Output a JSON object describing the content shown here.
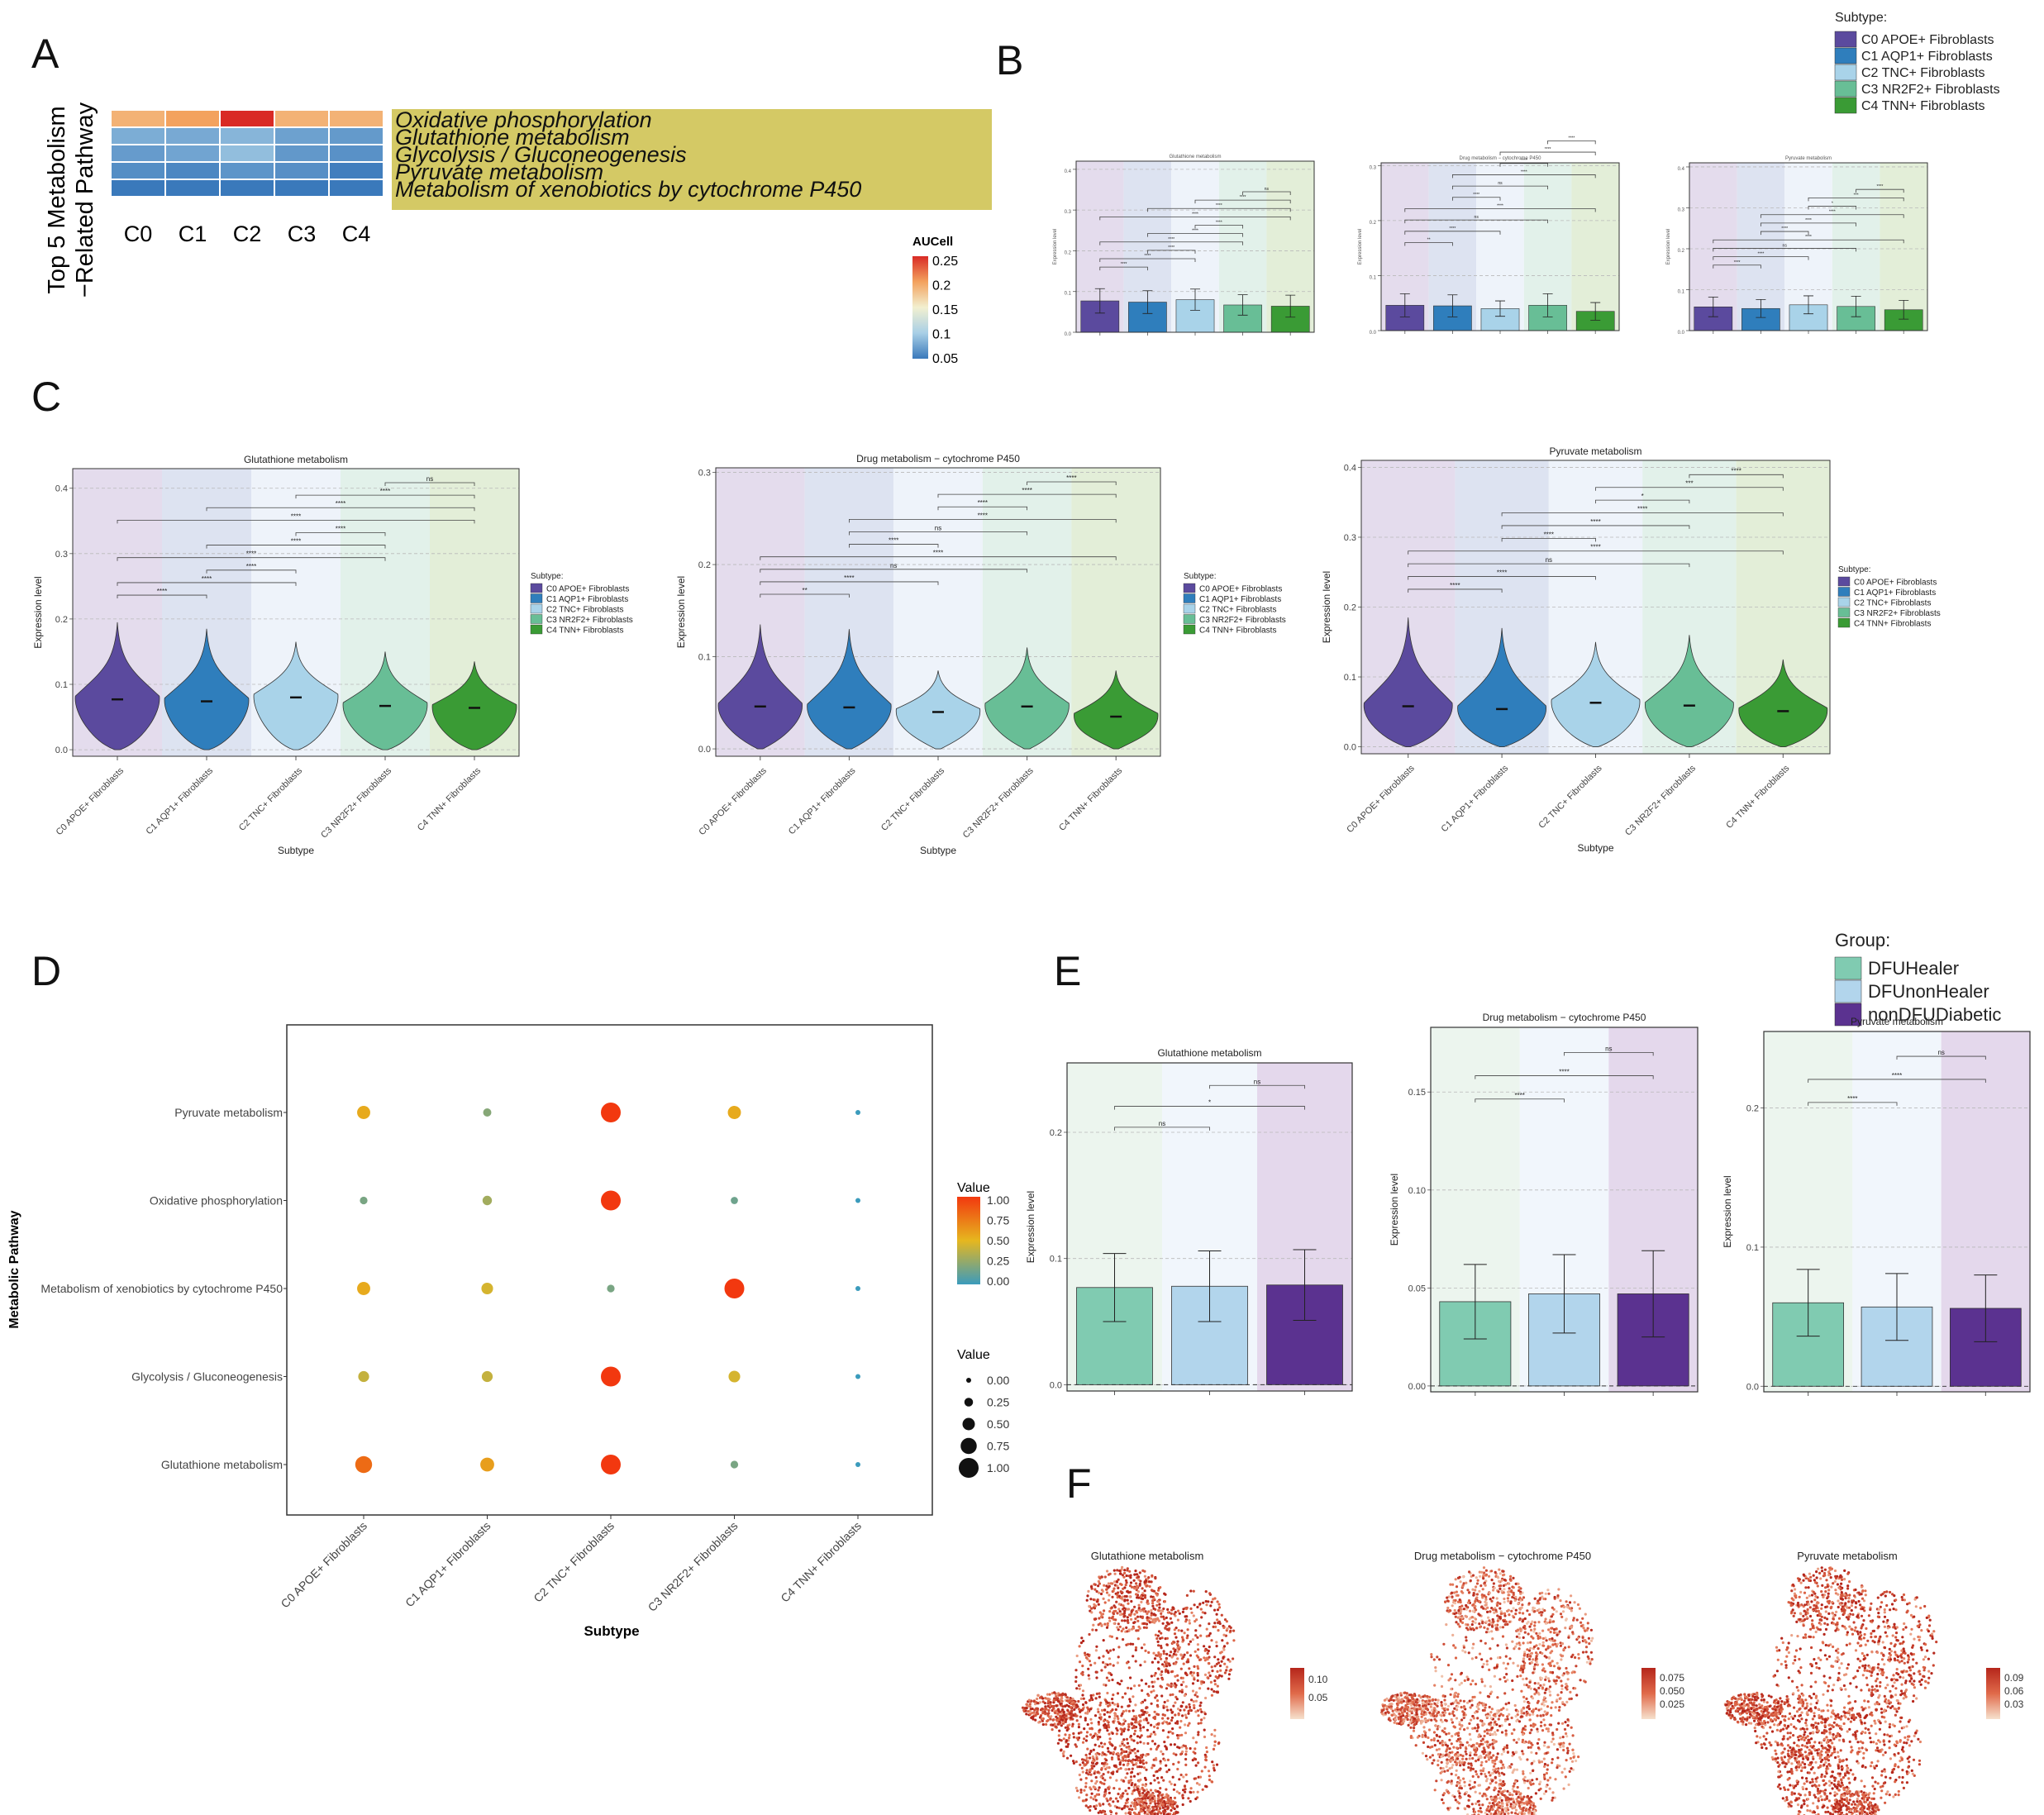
{
  "panels": {
    "A": "A",
    "B": "B",
    "C": "C",
    "D": "D",
    "E": "E",
    "F": "F"
  },
  "colors": {
    "subtype": [
      "#5b4a9e",
      "#2f7ebc",
      "#a9d3e9",
      "#68be96",
      "#3a9b35"
    ],
    "subtype_bg": [
      "#e4dced",
      "#dde3f1",
      "#eef3fa",
      "#e2f1ea",
      "#e3eed8"
    ],
    "group": [
      "#80cbb1",
      "#b2d5ec",
      "#5b3290"
    ],
    "group_bg": [
      "#ecf5ee",
      "#f1f6fc",
      "#e4d8ec"
    ],
    "pathway_label_bg": "#d4c965",
    "heatmap_palette": [
      "#3a79bb",
      "#a8cfe6",
      "#f2f0d0",
      "#f3a25e",
      "#d92a25"
    ],
    "dot_palette": [
      "#3b9bbc",
      "#e6b71f",
      "#f2380f"
    ],
    "umap": [
      "#f6e1cd",
      "#e06a4a",
      "#b5261b"
    ]
  },
  "heatmap": {
    "title": "Top 5 Metabolism\n−Related Pathway",
    "columns": [
      "C0",
      "C1",
      "C2",
      "C3",
      "C4"
    ],
    "rows": [
      "Oxidative phosphorylation",
      "Glutathione metabolism",
      "Glycolysis / Gluconeogenesis",
      "Pyruvate metabolism",
      "Metabolism of xenobiotics by cytochrome P450"
    ],
    "values": [
      [
        0.19,
        0.2,
        0.25,
        0.19,
        0.19
      ],
      [
        0.08,
        0.078,
        0.085,
        0.073,
        0.069
      ],
      [
        0.07,
        0.075,
        0.09,
        0.068,
        0.064
      ],
      [
        0.062,
        0.058,
        0.066,
        0.063,
        0.053
      ],
      [
        0.048,
        0.046,
        0.043,
        0.05,
        0.036
      ]
    ],
    "legend_title": "AUCell",
    "legend_ticks": [
      "0.25",
      "0.2",
      "0.15",
      "0.1",
      "0.05"
    ],
    "range": [
      0.05,
      0.25
    ]
  },
  "subtype_legend": {
    "title": "Subtype:",
    "items": [
      "C0 APOE+ Fibroblasts",
      "C1 AQP1+ Fibroblasts",
      "C2 TNC+ Fibroblasts",
      "C3 NR2F2+ Fibroblasts",
      "C4 TNN+ Fibroblasts"
    ]
  },
  "subtype_categories": [
    "C0 APOE+ Fibroblasts",
    "C1 AQP1+ Fibroblasts",
    "C2 TNC+ Fibroblasts",
    "C3 NR2F2+ Fibroblasts",
    "C4 TNN+ Fibroblasts"
  ],
  "chart_data": [
    {
      "id": "B1",
      "type": "bar",
      "title": "Glutathione metabolism",
      "categories": [
        "C0 APOE+ Fibroblasts",
        "C1 AQP1+ Fibroblasts",
        "C2 TNC+ Fibroblasts",
        "C3 NR2F2+ Fibroblasts",
        "C4 TNN+ Fibroblasts"
      ],
      "values": [
        0.077,
        0.074,
        0.08,
        0.067,
        0.064
      ],
      "errors": [
        0.03,
        0.028,
        0.026,
        0.025,
        0.027
      ],
      "ylim": [
        0,
        0.42
      ],
      "yticks": [
        "0.0",
        "0.1",
        "0.2",
        "0.3",
        "0.4"
      ],
      "ylabel": "Expression level",
      "comparisons": [
        [
          "0",
          "1",
          "****"
        ],
        [
          "0",
          "2",
          "****"
        ],
        [
          "1",
          "2",
          "****"
        ],
        [
          "0",
          "3",
          "****"
        ],
        [
          "1",
          "3",
          "****"
        ],
        [
          "2",
          "3",
          "****"
        ],
        [
          "0",
          "4",
          "****"
        ],
        [
          "1",
          "4",
          "****"
        ],
        [
          "2",
          "4",
          "****"
        ],
        [
          "3",
          "4",
          "ns"
        ]
      ]
    },
    {
      "id": "B2",
      "type": "bar",
      "title": "Drug metabolism − cytochrome P450",
      "categories": [
        "C0 APOE+ Fibroblasts",
        "C1 AQP1+ Fibroblasts",
        "C2 TNC+ Fibroblasts",
        "C3 NR2F2+ Fibroblasts",
        "C4 TNN+ Fibroblasts"
      ],
      "values": [
        0.046,
        0.045,
        0.04,
        0.046,
        0.035
      ],
      "errors": [
        0.021,
        0.02,
        0.014,
        0.021,
        0.016
      ],
      "ylim": [
        0,
        0.305
      ],
      "yticks": [
        "0.0",
        "0.1",
        "0.2",
        "0.3"
      ],
      "ylabel": "Expression level",
      "comparisons": [
        [
          "0",
          "1",
          "**"
        ],
        [
          "0",
          "2",
          "****"
        ],
        [
          "0",
          "3",
          "ns"
        ],
        [
          "0",
          "4",
          "****"
        ],
        [
          "1",
          "2",
          "****"
        ],
        [
          "1",
          "3",
          "ns"
        ],
        [
          "1",
          "4",
          "****"
        ],
        [
          "2",
          "3",
          "****"
        ],
        [
          "2",
          "4",
          "****"
        ],
        [
          "3",
          "4",
          "****"
        ]
      ]
    },
    {
      "id": "B3",
      "type": "bar",
      "title": "Pyruvate metabolism",
      "categories": [
        "C0 APOE+ Fibroblasts",
        "C1 AQP1+ Fibroblasts",
        "C2 TNC+ Fibroblasts",
        "C3 NR2F2+ Fibroblasts",
        "C4 TNN+ Fibroblasts"
      ],
      "values": [
        0.058,
        0.054,
        0.063,
        0.059,
        0.051
      ],
      "errors": [
        0.024,
        0.022,
        0.022,
        0.025,
        0.023
      ],
      "ylim": [
        0,
        0.41
      ],
      "yticks": [
        "0.0",
        "0.1",
        "0.2",
        "0.3",
        "0.4"
      ],
      "ylabel": "Expression level",
      "comparisons": [
        [
          "0",
          "1",
          "****"
        ],
        [
          "0",
          "2",
          "****"
        ],
        [
          "0",
          "3",
          "ns"
        ],
        [
          "0",
          "4",
          "****"
        ],
        [
          "1",
          "2",
          "****"
        ],
        [
          "1",
          "3",
          "****"
        ],
        [
          "1",
          "4",
          "****"
        ],
        [
          "2",
          "3",
          "*"
        ],
        [
          "2",
          "4",
          "***"
        ],
        [
          "3",
          "4",
          "****"
        ]
      ]
    },
    {
      "id": "C1",
      "type": "violin",
      "title": "Glutathione metabolism",
      "categories": [
        "C0 APOE+ Fibroblasts",
        "C1 AQP1+ Fibroblasts",
        "C2 TNC+ Fibroblasts",
        "C3 NR2F2+ Fibroblasts",
        "C4 TNN+ Fibroblasts"
      ],
      "medians": [
        0.077,
        0.074,
        0.08,
        0.067,
        0.064
      ],
      "maxima": [
        0.195,
        0.185,
        0.165,
        0.15,
        0.135
      ],
      "ylim": [
        -0.01,
        0.43
      ],
      "yticks": [
        "0.0",
        "0.1",
        "0.2",
        "0.3",
        "0.4"
      ],
      "xlabel": "Subtype",
      "ylabel": "Expression level",
      "comparisons": [
        [
          "0",
          "1",
          "****"
        ],
        [
          "0",
          "2",
          "****"
        ],
        [
          "1",
          "2",
          "****"
        ],
        [
          "0",
          "3",
          "****"
        ],
        [
          "1",
          "3",
          "****"
        ],
        [
          "2",
          "3",
          "****"
        ],
        [
          "0",
          "4",
          "****"
        ],
        [
          "1",
          "4",
          "****"
        ],
        [
          "2",
          "4",
          "****"
        ],
        [
          "3",
          "4",
          "ns"
        ]
      ]
    },
    {
      "id": "C2",
      "type": "violin",
      "title": "Drug metabolism − cytochrome P450",
      "categories": [
        "C0 APOE+ Fibroblasts",
        "C1 AQP1+ Fibroblasts",
        "C2 TNC+ Fibroblasts",
        "C3 NR2F2+ Fibroblasts",
        "C4 TNN+ Fibroblasts"
      ],
      "medians": [
        0.046,
        0.045,
        0.04,
        0.046,
        0.035
      ],
      "maxima": [
        0.135,
        0.13,
        0.085,
        0.11,
        0.085
      ],
      "ylim": [
        -0.008,
        0.305
      ],
      "yticks": [
        "0.0",
        "0.1",
        "0.2",
        "0.3"
      ],
      "xlabel": "Subtype",
      "ylabel": "Expression level",
      "comparisons": [
        [
          "0",
          "1",
          "**"
        ],
        [
          "0",
          "2",
          "****"
        ],
        [
          "0",
          "3",
          "ns"
        ],
        [
          "0",
          "4",
          "****"
        ],
        [
          "1",
          "2",
          "****"
        ],
        [
          "1",
          "3",
          "ns"
        ],
        [
          "1",
          "4",
          "****"
        ],
        [
          "2",
          "3",
          "****"
        ],
        [
          "2",
          "4",
          "****"
        ],
        [
          "3",
          "4",
          "****"
        ]
      ]
    },
    {
      "id": "C3",
      "type": "violin",
      "title": "Pyruvate metabolism",
      "categories": [
        "C0 APOE+ Fibroblasts",
        "C1 AQP1+ Fibroblasts",
        "C2 TNC+ Fibroblasts",
        "C3 NR2F2+ Fibroblasts",
        "C4 TNN+ Fibroblasts"
      ],
      "medians": [
        0.058,
        0.054,
        0.063,
        0.059,
        0.051
      ],
      "maxima": [
        0.185,
        0.17,
        0.15,
        0.16,
        0.125
      ],
      "ylim": [
        -0.01,
        0.41
      ],
      "yticks": [
        "0.0",
        "0.1",
        "0.2",
        "0.3",
        "0.4"
      ],
      "xlabel": "Subtype",
      "ylabel": "Expression level",
      "comparisons": [
        [
          "0",
          "1",
          "****"
        ],
        [
          "0",
          "2",
          "****"
        ],
        [
          "0",
          "3",
          "ns"
        ],
        [
          "0",
          "4",
          "****"
        ],
        [
          "1",
          "2",
          "****"
        ],
        [
          "1",
          "3",
          "****"
        ],
        [
          "1",
          "4",
          "****"
        ],
        [
          "2",
          "3",
          "*"
        ],
        [
          "2",
          "4",
          "***"
        ],
        [
          "3",
          "4",
          "****"
        ]
      ]
    },
    {
      "id": "D",
      "type": "scatter",
      "x_categories": [
        "C0 APOE+ Fibroblasts",
        "C1 AQP1+ Fibroblasts",
        "C2 TNC+ Fibroblasts",
        "C3 NR2F2+ Fibroblasts",
        "C4 TNN+ Fibroblasts"
      ],
      "y_categories": [
        "Pyruvate metabolism",
        "Oxidative phosphorylation",
        "Metabolism of xenobiotics by cytochrome P450",
        "Glycolysis / Gluconeogenesis",
        "Glutathione metabolism"
      ],
      "values": [
        [
          0.55,
          0.22,
          1.0,
          0.55,
          0.0
        ],
        [
          0.18,
          0.3,
          1.0,
          0.15,
          0.0
        ],
        [
          0.55,
          0.45,
          0.18,
          1.0,
          0.0
        ],
        [
          0.4,
          0.4,
          1.0,
          0.45,
          0.0
        ],
        [
          0.8,
          0.6,
          1.0,
          0.18,
          0.0
        ]
      ],
      "xlabel": "Subtype",
      "ylabel": "Metabolic Pathway",
      "color_legend_title": "Value",
      "color_ticks": [
        "1.00",
        "0.75",
        "0.50",
        "0.25",
        "0.00"
      ],
      "size_legend_title": "Value",
      "size_ticks": [
        "0.00",
        "0.25",
        "0.50",
        "0.75",
        "1.00"
      ]
    },
    {
      "id": "E1",
      "type": "bar",
      "title": "Glutathione metabolism",
      "categories": [
        "DFUHealer",
        "DFUnonHealer",
        "nonDFUDiabetic"
      ],
      "values": [
        0.077,
        0.078,
        0.079
      ],
      "errors": [
        0.027,
        0.028,
        0.028
      ],
      "ylim": [
        -0.005,
        0.255
      ],
      "yticks": [
        "0.0",
        "0.1",
        "0.2"
      ],
      "ylabel": "Expression level",
      "comparisons": [
        [
          "0",
          "1",
          "ns"
        ],
        [
          "0",
          "2",
          "*"
        ],
        [
          "1",
          "2",
          "ns"
        ]
      ]
    },
    {
      "id": "E2",
      "type": "bar",
      "title": "Drug metabolism − cytochrome P450",
      "categories": [
        "DFUHealer",
        "DFUnonHealer",
        "nonDFUDiabetic"
      ],
      "values": [
        0.043,
        0.047,
        0.047
      ],
      "errors": [
        0.019,
        0.02,
        0.022
      ],
      "ylim": [
        -0.003,
        0.183
      ],
      "yticks": [
        "0.00",
        "0.05",
        "0.10",
        "0.15"
      ],
      "ylabel": "Expression level",
      "comparisons": [
        [
          "0",
          "1",
          "****"
        ],
        [
          "0",
          "2",
          "****"
        ],
        [
          "1",
          "2",
          "ns"
        ]
      ]
    },
    {
      "id": "E3",
      "type": "bar",
      "title": "Pyruvate metabolism",
      "categories": [
        "DFUHealer",
        "DFUnonHealer",
        "nonDFUDiabetic"
      ],
      "values": [
        0.06,
        0.057,
        0.056
      ],
      "errors": [
        0.024,
        0.024,
        0.024
      ],
      "ylim": [
        -0.004,
        0.255
      ],
      "yticks": [
        "0.0",
        "0.1",
        "0.2"
      ],
      "ylabel": "Expression level",
      "comparisons": [
        [
          "0",
          "1",
          "****"
        ],
        [
          "0",
          "2",
          "****"
        ],
        [
          "1",
          "2",
          "ns"
        ]
      ]
    }
  ],
  "group_legend": {
    "title": "Group:",
    "items": [
      "DFUHealer",
      "DFUnonHealer",
      "nonDFUDiabetic"
    ]
  },
  "umaps": [
    {
      "title": "Glutathione metabolism",
      "ticks": [
        "0.10",
        "0.05"
      ]
    },
    {
      "title": "Drug metabolism − cytochrome P450",
      "ticks": [
        "0.075",
        "0.050",
        "0.025"
      ]
    },
    {
      "title": "Pyruvate metabolism",
      "ticks": [
        "0.09",
        "0.06",
        "0.03"
      ]
    }
  ]
}
